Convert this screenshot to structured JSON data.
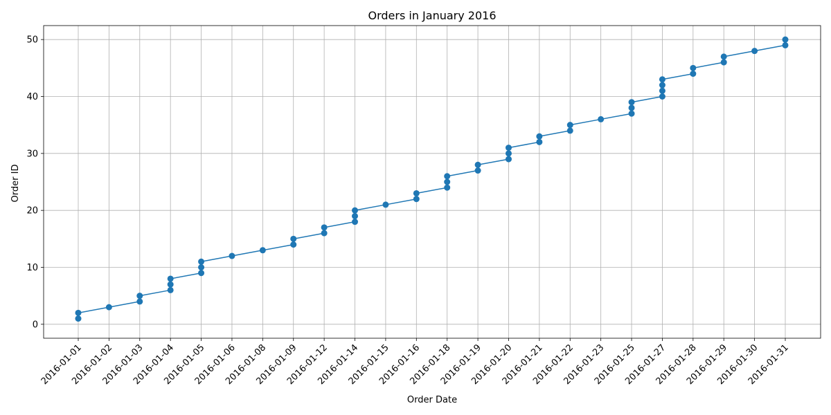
{
  "chart_data": {
    "type": "line",
    "title": "Orders in January 2016",
    "xlabel": "Order Date",
    "ylabel": "Order ID",
    "categories": [
      "2016-01-01",
      "2016-01-02",
      "2016-01-03",
      "2016-01-04",
      "2016-01-05",
      "2016-01-06",
      "2016-01-08",
      "2016-01-09",
      "2016-01-12",
      "2016-01-14",
      "2016-01-15",
      "2016-01-16",
      "2016-01-18",
      "2016-01-19",
      "2016-01-20",
      "2016-01-21",
      "2016-01-22",
      "2016-01-23",
      "2016-01-25",
      "2016-01-27",
      "2016-01-28",
      "2016-01-29",
      "2016-01-30",
      "2016-01-31"
    ],
    "points": [
      {
        "x": "2016-01-01",
        "y": 1
      },
      {
        "x": "2016-01-01",
        "y": 2
      },
      {
        "x": "2016-01-02",
        "y": 3
      },
      {
        "x": "2016-01-03",
        "y": 4
      },
      {
        "x": "2016-01-03",
        "y": 5
      },
      {
        "x": "2016-01-04",
        "y": 6
      },
      {
        "x": "2016-01-04",
        "y": 7
      },
      {
        "x": "2016-01-04",
        "y": 8
      },
      {
        "x": "2016-01-05",
        "y": 9
      },
      {
        "x": "2016-01-05",
        "y": 10
      },
      {
        "x": "2016-01-05",
        "y": 11
      },
      {
        "x": "2016-01-06",
        "y": 12
      },
      {
        "x": "2016-01-08",
        "y": 13
      },
      {
        "x": "2016-01-09",
        "y": 14
      },
      {
        "x": "2016-01-09",
        "y": 15
      },
      {
        "x": "2016-01-12",
        "y": 16
      },
      {
        "x": "2016-01-12",
        "y": 17
      },
      {
        "x": "2016-01-14",
        "y": 18
      },
      {
        "x": "2016-01-14",
        "y": 19
      },
      {
        "x": "2016-01-14",
        "y": 20
      },
      {
        "x": "2016-01-15",
        "y": 21
      },
      {
        "x": "2016-01-16",
        "y": 22
      },
      {
        "x": "2016-01-16",
        "y": 23
      },
      {
        "x": "2016-01-18",
        "y": 24
      },
      {
        "x": "2016-01-18",
        "y": 25
      },
      {
        "x": "2016-01-18",
        "y": 26
      },
      {
        "x": "2016-01-19",
        "y": 27
      },
      {
        "x": "2016-01-19",
        "y": 28
      },
      {
        "x": "2016-01-20",
        "y": 29
      },
      {
        "x": "2016-01-20",
        "y": 30
      },
      {
        "x": "2016-01-20",
        "y": 31
      },
      {
        "x": "2016-01-21",
        "y": 32
      },
      {
        "x": "2016-01-21",
        "y": 33
      },
      {
        "x": "2016-01-22",
        "y": 34
      },
      {
        "x": "2016-01-22",
        "y": 35
      },
      {
        "x": "2016-01-23",
        "y": 36
      },
      {
        "x": "2016-01-25",
        "y": 37
      },
      {
        "x": "2016-01-25",
        "y": 38
      },
      {
        "x": "2016-01-25",
        "y": 39
      },
      {
        "x": "2016-01-27",
        "y": 40
      },
      {
        "x": "2016-01-27",
        "y": 41
      },
      {
        "x": "2016-01-27",
        "y": 42
      },
      {
        "x": "2016-01-27",
        "y": 43
      },
      {
        "x": "2016-01-28",
        "y": 44
      },
      {
        "x": "2016-01-28",
        "y": 45
      },
      {
        "x": "2016-01-29",
        "y": 46
      },
      {
        "x": "2016-01-29",
        "y": 47
      },
      {
        "x": "2016-01-30",
        "y": 48
      },
      {
        "x": "2016-01-31",
        "y": 49
      },
      {
        "x": "2016-01-31",
        "y": 50
      }
    ],
    "yticks": [
      0,
      10,
      20,
      30,
      40,
      50
    ],
    "ylim": [
      -2.45,
      52.45
    ],
    "grid": true,
    "marker": "circle",
    "color": "#1f77b4"
  }
}
